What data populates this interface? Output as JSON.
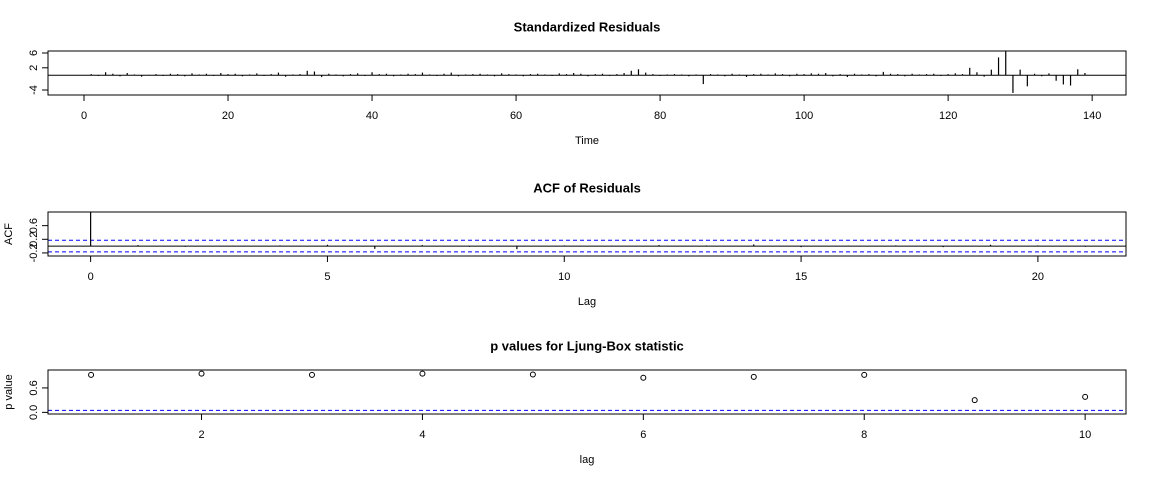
{
  "chart_data": [
    {
      "type": "spike",
      "title": "Standardized Residuals",
      "x_label": "Time",
      "x": [
        1,
        2,
        3,
        4,
        5,
        6,
        7,
        8,
        9,
        10,
        11,
        12,
        13,
        14,
        15,
        16,
        17,
        18,
        19,
        20,
        21,
        22,
        23,
        24,
        25,
        26,
        27,
        28,
        29,
        30,
        31,
        32,
        33,
        34,
        35,
        36,
        37,
        38,
        39,
        40,
        41,
        42,
        43,
        44,
        45,
        46,
        47,
        48,
        49,
        50,
        51,
        52,
        53,
        54,
        55,
        56,
        57,
        58,
        59,
        60,
        61,
        62,
        63,
        64,
        65,
        66,
        67,
        68,
        69,
        70,
        71,
        72,
        73,
        74,
        75,
        76,
        77,
        78,
        79,
        80,
        81,
        82,
        83,
        84,
        85,
        86,
        87,
        88,
        89,
        90,
        91,
        92,
        93,
        94,
        95,
        96,
        97,
        98,
        99,
        100,
        101,
        102,
        103,
        104,
        105,
        106,
        107,
        108,
        109,
        110,
        111,
        112,
        113,
        114,
        115,
        116,
        117,
        118,
        119,
        120,
        121,
        122,
        123,
        124,
        125,
        126,
        127,
        128,
        129,
        130,
        131,
        132,
        133,
        134,
        135,
        136,
        137,
        138,
        139
      ],
      "values": [
        0.3,
        -0.2,
        0.8,
        0.4,
        -0.3,
        0.6,
        0.2,
        -0.4,
        0.1,
        0.3,
        -0.2,
        0.4,
        0.3,
        -0.3,
        0.5,
        0.2,
        0.4,
        -0.2,
        0.6,
        0.3,
        0.4,
        -0.3,
        0.2,
        0.5,
        -0.2,
        0.3,
        0.7,
        -0.4,
        0.2,
        0.3,
        1.2,
        1.0,
        -0.5,
        0.4,
        0.2,
        -0.3,
        0.3,
        0.5,
        -0.2,
        0.8,
        0.3,
        0.4,
        -0.3,
        0.2,
        0.4,
        0.3,
        0.7,
        0.2,
        -0.2,
        0.4,
        0.7,
        -0.3,
        0.2,
        0.3,
        0.4,
        0.2,
        -0.3,
        0.5,
        0.3,
        0.2,
        -0.3,
        0.3,
        0.4,
        0.2,
        -0.2,
        0.5,
        0.3,
        0.6,
        0.4,
        -0.3,
        0.3,
        0.4,
        -0.2,
        0.3,
        0.6,
        1.2,
        1.6,
        0.7,
        0.3,
        -0.2,
        0.2,
        0.3,
        0.2,
        -0.3,
        0.2,
        -2.4,
        0.3,
        0.2,
        -0.3,
        0.4,
        0.2,
        -0.5,
        0.3,
        0.4,
        0.2,
        0.5,
        0.3,
        -0.3,
        0.4,
        0.3,
        0.5,
        0.4,
        0.6,
        -0.3,
        0.3,
        -0.5,
        0.4,
        0.2,
        0.3,
        -0.3,
        0.9,
        0.4,
        0.3,
        -0.3,
        0.4,
        0.2,
        0.3,
        0.4,
        -0.2,
        0.3,
        0.5,
        0.3,
        2.0,
        0.8,
        -0.4,
        1.5,
        4.8,
        6.4,
        -4.8,
        1.5,
        -3.0,
        0.4,
        -0.3,
        0.5,
        -1.5,
        -2.5,
        -2.8,
        1.6,
        0.6
      ],
      "color": "#000000",
      "xlim": [
        -5,
        144.7
      ],
      "xticks": [
        0,
        20,
        40,
        60,
        80,
        100,
        120,
        140
      ],
      "ylim": [
        -5.35,
        6.54
      ],
      "yticks": [
        -4,
        2,
        6
      ],
      "hlines": [
        {
          "value": 0,
          "style": "solid",
          "color": "#000000"
        }
      ]
    },
    {
      "type": "spike",
      "title": "ACF of Residuals",
      "x_label": "Lag",
      "y_label": "ACF",
      "x": [
        0,
        1,
        2,
        3,
        4,
        5,
        6,
        7,
        8,
        9,
        10,
        11,
        12,
        13,
        14,
        15,
        16,
        17,
        18,
        19,
        20,
        21
      ],
      "values": [
        1,
        0.03,
        -0.02,
        0.01,
        0.02,
        0.04,
        -0.08,
        0.03,
        -0.02,
        -0.09,
        0.02,
        0.01,
        0.03,
        0.02,
        0.05,
        -0.03,
        0.01,
        0.02,
        -0.03,
        0.04,
        0.02,
        -0.02
      ],
      "color": "#000000",
      "xlim": [
        -0.9,
        21.86
      ],
      "xticks": [
        0,
        5,
        10,
        15,
        20
      ],
      "ylim": [
        -0.29,
        1
      ],
      "yticks": [
        -0.2,
        0.2,
        0.6
      ],
      "hlines": [
        {
          "value": 0,
          "style": "solid",
          "color": "#000000"
        },
        {
          "value": 0.17,
          "style": "dashed",
          "color": "#0000ff"
        },
        {
          "value": -0.17,
          "style": "dashed",
          "color": "#0000ff"
        }
      ]
    },
    {
      "type": "scatter",
      "title": "p values for Ljung-Box statistic",
      "x_label": "lag",
      "y_label": "p value",
      "x": [
        1,
        2,
        3,
        4,
        5,
        6,
        7,
        8,
        9,
        10
      ],
      "values": [
        0.92,
        0.95,
        0.92,
        0.95,
        0.93,
        0.85,
        0.87,
        0.92,
        0.3,
        0.38
      ],
      "color": "#000000",
      "xlim": [
        0.61,
        10.37
      ],
      "xticks": [
        2,
        4,
        6,
        8,
        10
      ],
      "ylim": [
        -0.04,
        1.04
      ],
      "yticks": [
        {
          "value": 0,
          "label": "0.0"
        },
        {
          "value": 0.6,
          "label": "0.6"
        }
      ],
      "hlines": [
        {
          "value": 0.05,
          "style": "dashed",
          "color": "#0000ff"
        }
      ]
    }
  ]
}
